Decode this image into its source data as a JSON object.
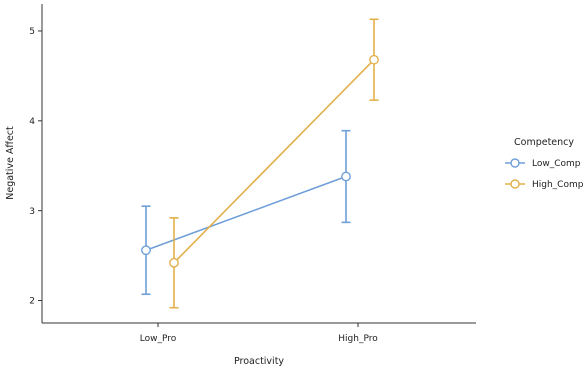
{
  "chart_data": {
    "type": "line",
    "title": "",
    "xlabel": "Proactivity",
    "ylabel": "Negative Affect",
    "categories": [
      "Low_Pro",
      "High_Pro"
    ],
    "ylim": [
      1.75,
      5.3
    ],
    "yticks": [
      2,
      3,
      4,
      5
    ],
    "grid": false,
    "legend": {
      "title": "Competency",
      "position": "right"
    },
    "series": [
      {
        "name": "Low_Comp",
        "color": "#6e9fd8",
        "values": [
          2.56,
          3.38
        ],
        "lower": [
          2.07,
          2.87
        ],
        "upper": [
          3.05,
          3.89
        ]
      },
      {
        "name": "High_Comp",
        "color": "#e2b04a",
        "values": [
          2.42,
          4.68
        ],
        "lower": [
          1.92,
          4.23
        ],
        "upper": [
          2.92,
          5.13
        ]
      }
    ]
  }
}
